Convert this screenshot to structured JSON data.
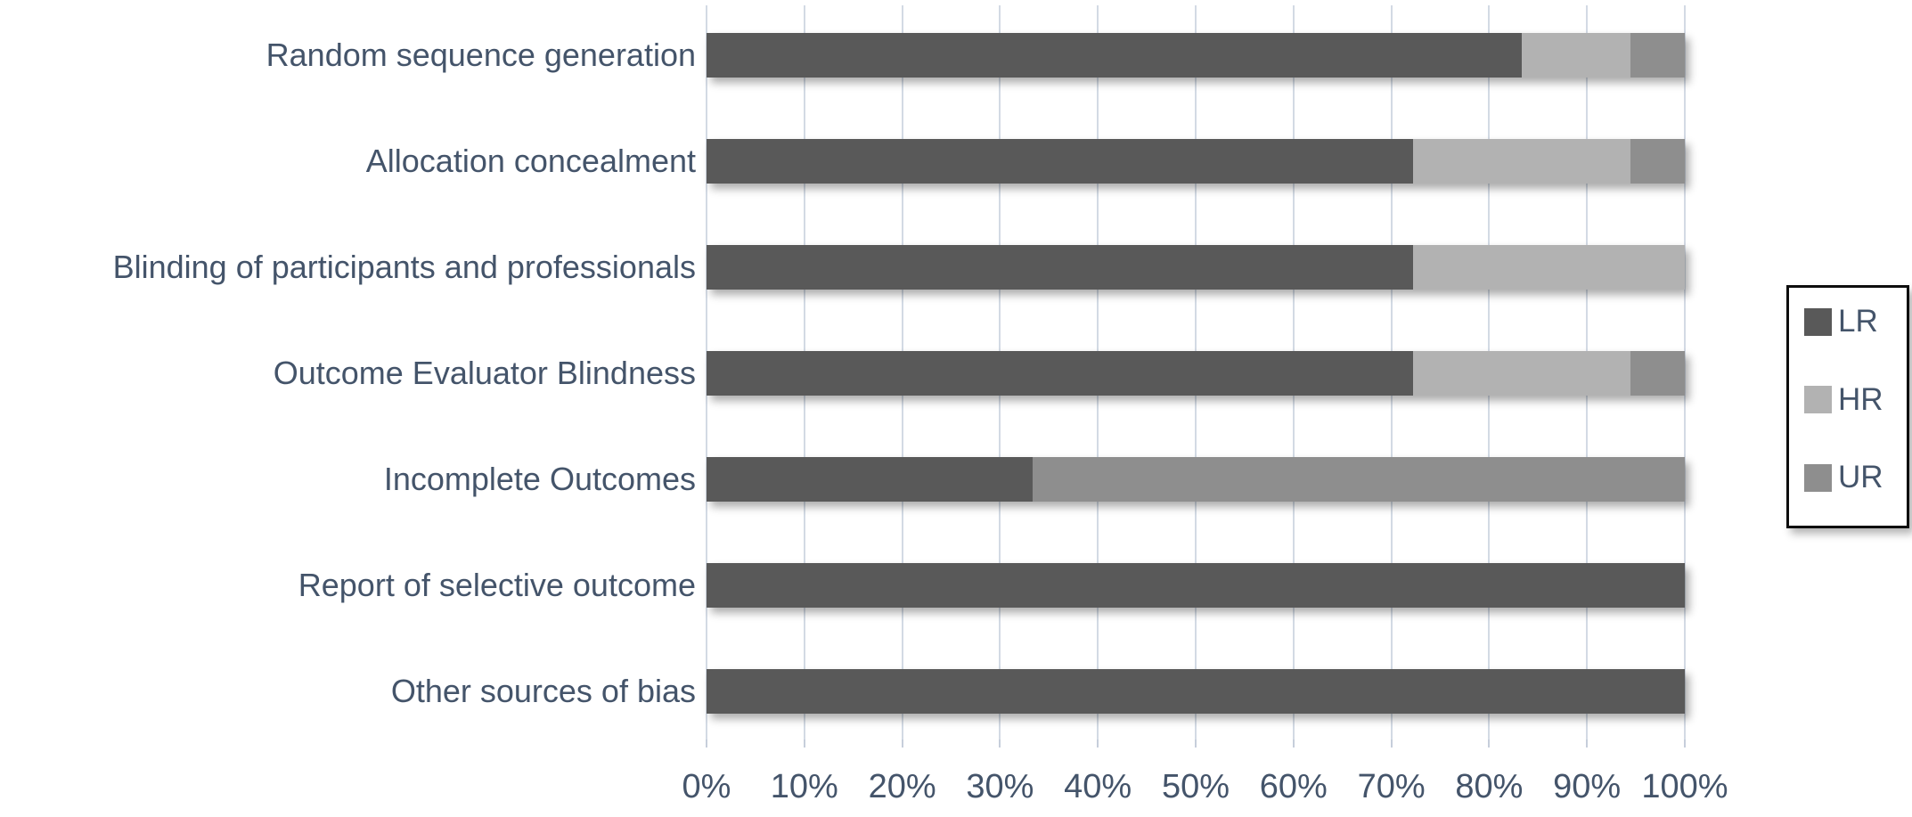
{
  "colors": {
    "label_text": "#44546A",
    "gridline": "#d3dae4",
    "tick": "#c6cedb",
    "lr": "#595959",
    "hr": "#b2b2b2",
    "ur": "#8e8e8e",
    "legend_border": "#0d0d0d",
    "background": "#ffffff"
  },
  "chart_data": {
    "type": "bar",
    "orientation": "horizontal",
    "stacked": true,
    "title": "",
    "xlabel": "",
    "ylabel": "",
    "grid": true,
    "categories": [
      "Random sequence generation",
      "Allocation concealment",
      "Blinding of participants and professionals",
      "Outcome Evaluator Blindness",
      "Incomplete Outcomes",
      "Report of selective outcome",
      "Other sources of bias"
    ],
    "series": [
      {
        "name": "LR",
        "color": "#595959",
        "values": [
          83.3,
          72.2,
          72.2,
          72.2,
          33.3,
          100,
          100
        ]
      },
      {
        "name": "HR",
        "color": "#b2b2b2",
        "values": [
          11.1,
          22.2,
          27.8,
          22.2,
          0,
          0,
          0
        ]
      },
      {
        "name": "UR",
        "color": "#8e8e8e",
        "values": [
          5.6,
          5.6,
          0,
          5.6,
          66.7,
          0,
          0
        ]
      }
    ],
    "x_axis": {
      "min": 0,
      "max": 100,
      "tick_step": 10,
      "tick_labels": [
        "0%",
        "10%",
        "20%",
        "30%",
        "40%",
        "50%",
        "60%",
        "70%",
        "80%",
        "90%",
        "100%"
      ]
    },
    "legend": {
      "position": "right",
      "entries": [
        "LR",
        "HR",
        "UR"
      ]
    }
  }
}
